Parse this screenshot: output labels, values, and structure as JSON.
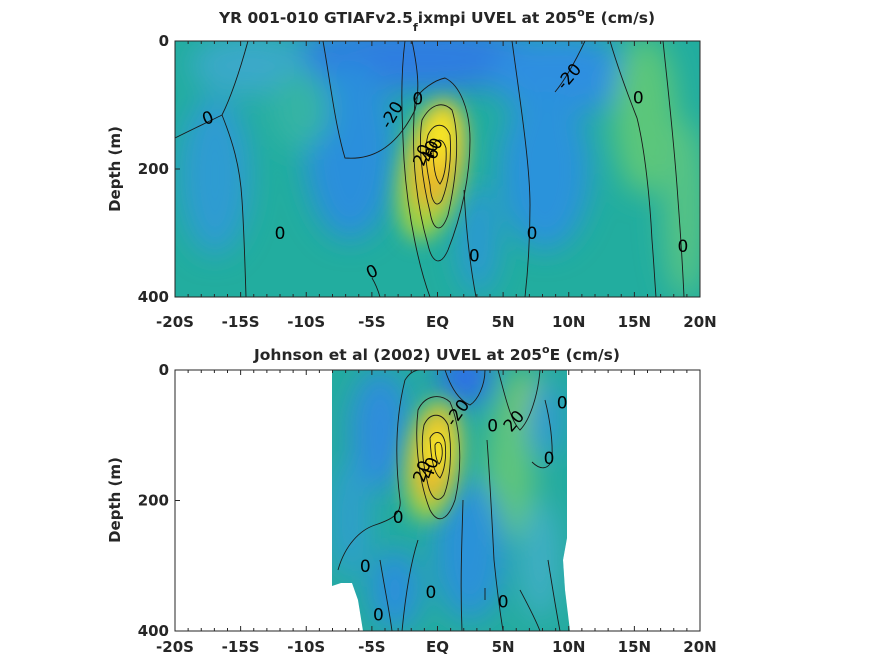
{
  "colors": {
    "axis": "#262626",
    "contour": "#1a1a1a"
  },
  "chart_data": [
    {
      "type": "heatmap",
      "title_parts": {
        "main": "YR 001-010 GTIAFv2.5",
        "sub": "f",
        "rest": "ixmpi UVEL at 205",
        "sup": "o",
        "tail": "E (cm/s)"
      },
      "ylabel": "Depth (m)",
      "xlim": [
        -20,
        20
      ],
      "ylim": [
        0,
        400
      ],
      "y_reversed": true,
      "x_ticks": [
        -20,
        -15,
        -10,
        -5,
        0,
        5,
        10,
        15,
        20
      ],
      "x_tick_labels": [
        "-20S",
        "-15S",
        "-10S",
        "-5S",
        "EQ",
        "5N",
        "10N",
        "15N",
        "20N"
      ],
      "y_ticks": [
        0,
        200,
        400
      ],
      "y_tick_labels": [
        "0",
        "200",
        "400"
      ],
      "grid": false,
      "data_extent": {
        "lat": [
          -20,
          20
        ],
        "depth": [
          0,
          390
        ]
      },
      "contour_labels": [
        {
          "text": "0",
          "lat": -17.5,
          "depth": 120,
          "rot": -20
        },
        {
          "text": "-20",
          "lat": -3.5,
          "depth": 115,
          "rot": -60
        },
        {
          "text": "0",
          "lat": -1.5,
          "depth": 90,
          "rot": 0
        },
        {
          "text": "-20",
          "lat": 10,
          "depth": 55,
          "rot": -50
        },
        {
          "text": "0",
          "lat": 15.3,
          "depth": 88,
          "rot": 0
        },
        {
          "text": "0",
          "lat": -12,
          "depth": 300,
          "rot": 0
        },
        {
          "text": "0",
          "lat": 7.2,
          "depth": 300,
          "rot": 0
        },
        {
          "text": "0",
          "lat": 18.7,
          "depth": 320,
          "rot": 0
        },
        {
          "text": "0",
          "lat": 2.8,
          "depth": 335,
          "rot": 0
        },
        {
          "text": "0",
          "lat": -5,
          "depth": 360,
          "rot": -25
        },
        {
          "text": "20",
          "lat": -1.2,
          "depth": 178,
          "rot": -70
        },
        {
          "text": "40",
          "lat": -0.6,
          "depth": 172,
          "rot": -70
        },
        {
          "text": "60",
          "lat": -0.3,
          "depth": 168,
          "rot": -70
        }
      ]
    },
    {
      "type": "heatmap",
      "title_parts": {
        "main": "Johnson et al (2002) UVEL at 205",
        "sup": "o",
        "tail": "E (cm/s)"
      },
      "ylabel": "Depth (m)",
      "xlim": [
        -20,
        20
      ],
      "ylim": [
        0,
        400
      ],
      "y_reversed": true,
      "x_ticks": [
        -20,
        -15,
        -10,
        -5,
        0,
        5,
        10,
        15,
        20
      ],
      "x_tick_labels": [
        "-20S",
        "-15S",
        "-10S",
        "-5S",
        "EQ",
        "5N",
        "10N",
        "15N",
        "20N"
      ],
      "y_ticks": [
        0,
        200,
        400
      ],
      "y_tick_labels": [
        "0",
        "200",
        "400"
      ],
      "grid": false,
      "data_extent": {
        "lat": [
          -8,
          10
        ],
        "depth": [
          0,
          400
        ]
      },
      "contour_labels": [
        {
          "text": "-20",
          "lat": 1.5,
          "depth": 65,
          "rot": -55
        },
        {
          "text": "0",
          "lat": 4.2,
          "depth": 85,
          "rot": 0
        },
        {
          "text": "20",
          "lat": 5.8,
          "depth": 78,
          "rot": -50
        },
        {
          "text": "0",
          "lat": 9.5,
          "depth": 50,
          "rot": 0
        },
        {
          "text": "0",
          "lat": 8.5,
          "depth": 135,
          "rot": 0
        },
        {
          "text": "20",
          "lat": -1.2,
          "depth": 155,
          "rot": -70
        },
        {
          "text": "40",
          "lat": -0.6,
          "depth": 150,
          "rot": -70
        },
        {
          "text": "0",
          "lat": -3,
          "depth": 225,
          "rot": 0
        },
        {
          "text": "0",
          "lat": -5.5,
          "depth": 300,
          "rot": 0
        },
        {
          "text": "0",
          "lat": -0.5,
          "depth": 340,
          "rot": 0
        },
        {
          "text": "0",
          "lat": 5,
          "depth": 355,
          "rot": 0
        },
        {
          "text": "0",
          "lat": -4.5,
          "depth": 375,
          "rot": 0
        }
      ]
    }
  ]
}
